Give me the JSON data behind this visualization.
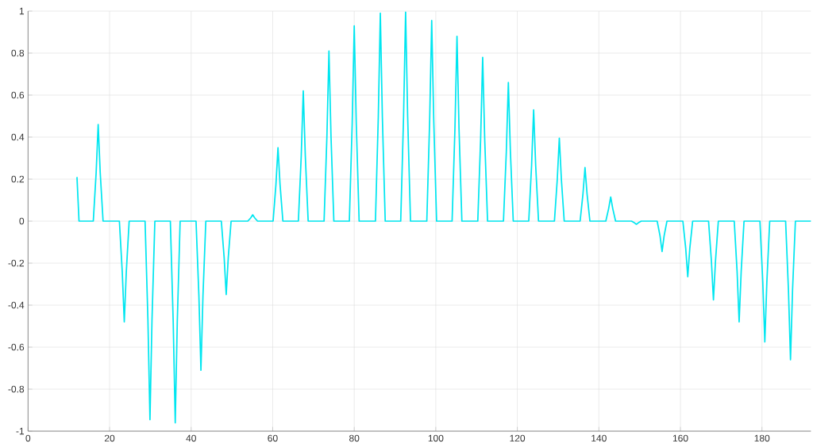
{
  "chart_data": {
    "type": "line",
    "x": [
      12,
      12.5,
      16,
      16.7,
      17.2,
      17.7,
      18.4,
      22.4,
      23.1,
      23.6,
      24.1,
      24.8,
      28.7,
      29.4,
      29.9,
      30.4,
      31.1,
      34.9,
      35.6,
      36.1,
      36.6,
      37.3,
      41.2,
      41.9,
      42.4,
      42.9,
      43.6,
      47.4,
      48.1,
      48.6,
      49.1,
      49.8,
      53.9,
      54.6,
      55.1,
      55.6,
      56.3,
      60.1,
      60.8,
      61.3,
      61.8,
      62.5,
      66.3,
      67,
      67.5,
      68,
      68.7,
      72.6,
      73.3,
      73.8,
      74.3,
      75,
      78.8,
      79.5,
      80,
      80.5,
      81.2,
      85.2,
      85.9,
      86.4,
      86.9,
      87.6,
      91.4,
      92.1,
      92.6,
      93.1,
      93.8,
      97.8,
      98.5,
      99,
      99.5,
      100.2,
      104,
      104.7,
      105.2,
      105.7,
      106.4,
      110.3,
      111,
      111.5,
      112,
      112.7,
      116.6,
      117.3,
      117.8,
      118.3,
      119,
      122.8,
      123.5,
      124,
      124.5,
      125.2,
      129.1,
      129.8,
      130.3,
      130.8,
      131.5,
      135.4,
      136.1,
      136.6,
      137.1,
      137.8,
      141.7,
      142.4,
      142.9,
      143.4,
      144.1,
      148,
      148.7,
      149.2,
      149.7,
      150.4,
      154.3,
      155,
      155.5,
      156,
      156.7,
      160.6,
      161.3,
      161.8,
      162.3,
      163,
      166.9,
      167.6,
      168.1,
      168.6,
      169.3,
      173.2,
      173.9,
      174.4,
      174.9,
      175.6,
      179.5,
      180.2,
      180.7,
      181.2,
      181.9,
      185.8,
      186.5,
      187,
      187.5,
      188.2,
      192
    ],
    "series": [
      {
        "color": "#00e6f0",
        "values": [
          0.21,
          0,
          0,
          0.23,
          0.46,
          0.23,
          0,
          0,
          -0.24,
          -0.48,
          -0.24,
          0,
          0,
          -0.47,
          -0.945,
          -0.47,
          0,
          0,
          -0.48,
          -0.96,
          -0.48,
          0,
          0,
          -0.355,
          -0.71,
          -0.355,
          0,
          0,
          -0.175,
          -0.35,
          -0.175,
          0,
          0,
          0.015,
          0.03,
          0.015,
          0,
          0,
          0.175,
          0.35,
          0.175,
          0,
          0,
          0.31,
          0.62,
          0.31,
          0,
          0,
          0.405,
          0.81,
          0.405,
          0,
          0,
          0.465,
          0.93,
          0.465,
          0,
          0,
          0.495,
          0.99,
          0.495,
          0,
          0,
          0.5,
          0.995,
          0.5,
          0,
          0,
          0.48,
          0.955,
          0.48,
          0,
          0,
          0.44,
          0.88,
          0.44,
          0,
          0,
          0.39,
          0.78,
          0.39,
          0,
          0,
          0.33,
          0.66,
          0.33,
          0,
          0,
          0.265,
          0.53,
          0.265,
          0,
          0,
          0.2,
          0.395,
          0.2,
          0,
          0,
          0.13,
          0.255,
          0.13,
          0,
          0,
          0.06,
          0.115,
          0.06,
          0,
          0,
          -0.008,
          -0.015,
          -0.008,
          0,
          0,
          -0.07,
          -0.145,
          -0.07,
          0,
          0,
          -0.13,
          -0.265,
          -0.13,
          0,
          0,
          -0.19,
          -0.375,
          -0.19,
          0,
          0,
          -0.24,
          -0.48,
          -0.24,
          0,
          0,
          -0.29,
          -0.575,
          -0.29,
          0,
          0,
          -0.33,
          -0.66,
          -0.33,
          0,
          0
        ]
      }
    ],
    "xlim": [
      0,
      192
    ],
    "ylim": [
      -1,
      1
    ],
    "xticks": [
      0,
      20,
      40,
      60,
      80,
      100,
      120,
      140,
      160,
      180
    ],
    "yticks": [
      -1,
      -0.8,
      -0.6,
      -0.4,
      -0.2,
      0,
      0.2,
      0.4,
      0.6,
      0.8,
      1
    ],
    "grid": true
  }
}
